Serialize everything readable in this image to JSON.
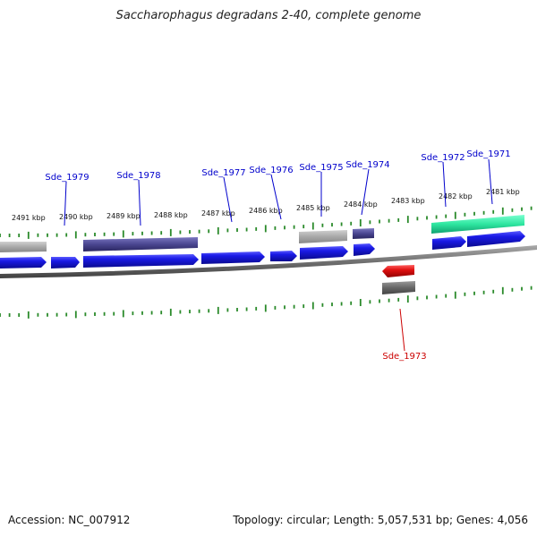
{
  "title": "Saccharophagus degradans 2-40, complete genome",
  "footer": {
    "accession": "Accession: NC_007912",
    "summary": "Topology: circular; Length: 5,057,531 bp; Genes: 4,056"
  },
  "ruler_labels": [
    "2491 kbp",
    "2490 kbp",
    "2489 kbp",
    "2488 kbp",
    "2487 kbp",
    "2486 kbp",
    "2485 kbp",
    "2484 kbp",
    "2483 kbp",
    "2482 kbp",
    "2481 kbp"
  ],
  "gene_labels": [
    {
      "name": "Sde_1979",
      "color": "#0000cc"
    },
    {
      "name": "Sde_1978",
      "color": "#0000cc"
    },
    {
      "name": "Sde_1977",
      "color": "#0000cc"
    },
    {
      "name": "Sde_1976",
      "color": "#0000cc"
    },
    {
      "name": "Sde_1975",
      "color": "#0000cc"
    },
    {
      "name": "Sde_1974",
      "color": "#0000cc"
    },
    {
      "name": "Sde_1972",
      "color": "#0000cc"
    },
    {
      "name": "Sde_1971",
      "color": "#0000cc"
    },
    {
      "name": "Sde_1973",
      "color": "#cc0000"
    }
  ],
  "colors": {
    "backbone": "#707070",
    "cds_forward": "#1a1ae6",
    "cds_reverse": "#e01010",
    "tick": "#2a8a2a",
    "gray_feature": "#a8a8a8",
    "dark_feature": "#4a4690",
    "teal_feature": "#2ee6a0",
    "darkgray_feature": "#666666"
  }
}
